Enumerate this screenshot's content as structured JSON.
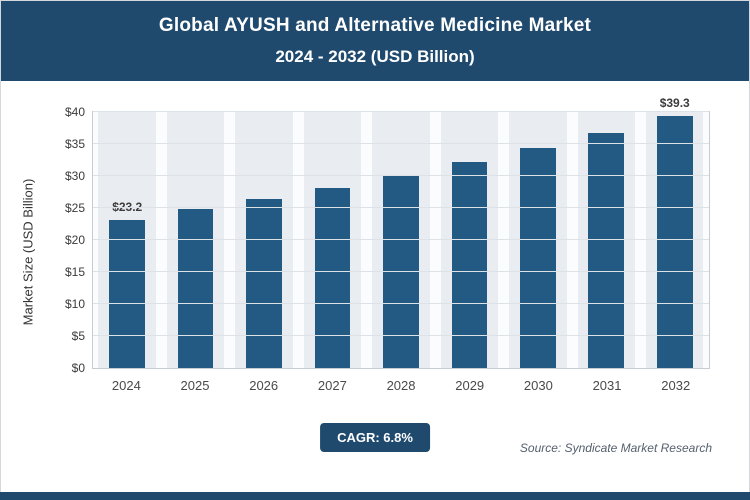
{
  "header": {
    "title_line1": "Global AYUSH and Alternative Medicine Market",
    "title_line2": "2024 - 2032 (USD Billion)"
  },
  "chart_data": {
    "type": "bar",
    "title": "Global AYUSH and Alternative Medicine Market 2024 - 2032 (USD Billion)",
    "categories": [
      "2024",
      "2025",
      "2026",
      "2027",
      "2028",
      "2029",
      "2030",
      "2031",
      "2032"
    ],
    "values": [
      23.2,
      24.8,
      26.4,
      28.2,
      30.1,
      32.2,
      34.4,
      36.7,
      39.3
    ],
    "data_labels": [
      "$23.2",
      "",
      "",
      "",
      "",
      "",
      "",
      "",
      "$39.3"
    ],
    "xlabel": "",
    "ylabel": "Market Size (USD Billion)",
    "ylim": [
      0,
      40
    ],
    "ytick_labels": [
      "$0",
      "$5",
      "$10",
      "$15",
      "$20",
      "$25",
      "$30",
      "$35",
      "$40"
    ],
    "grid": true,
    "legend": "none"
  },
  "footer": {
    "cagr_label": "CAGR: 6.8%",
    "source": "Source: Syndicate Market Research"
  },
  "colors": {
    "header_bg": "#1f4a6e",
    "bar": "#235a84",
    "badge_bg": "#1f4a6e",
    "bottom_strip": "#1f4a6e"
  }
}
